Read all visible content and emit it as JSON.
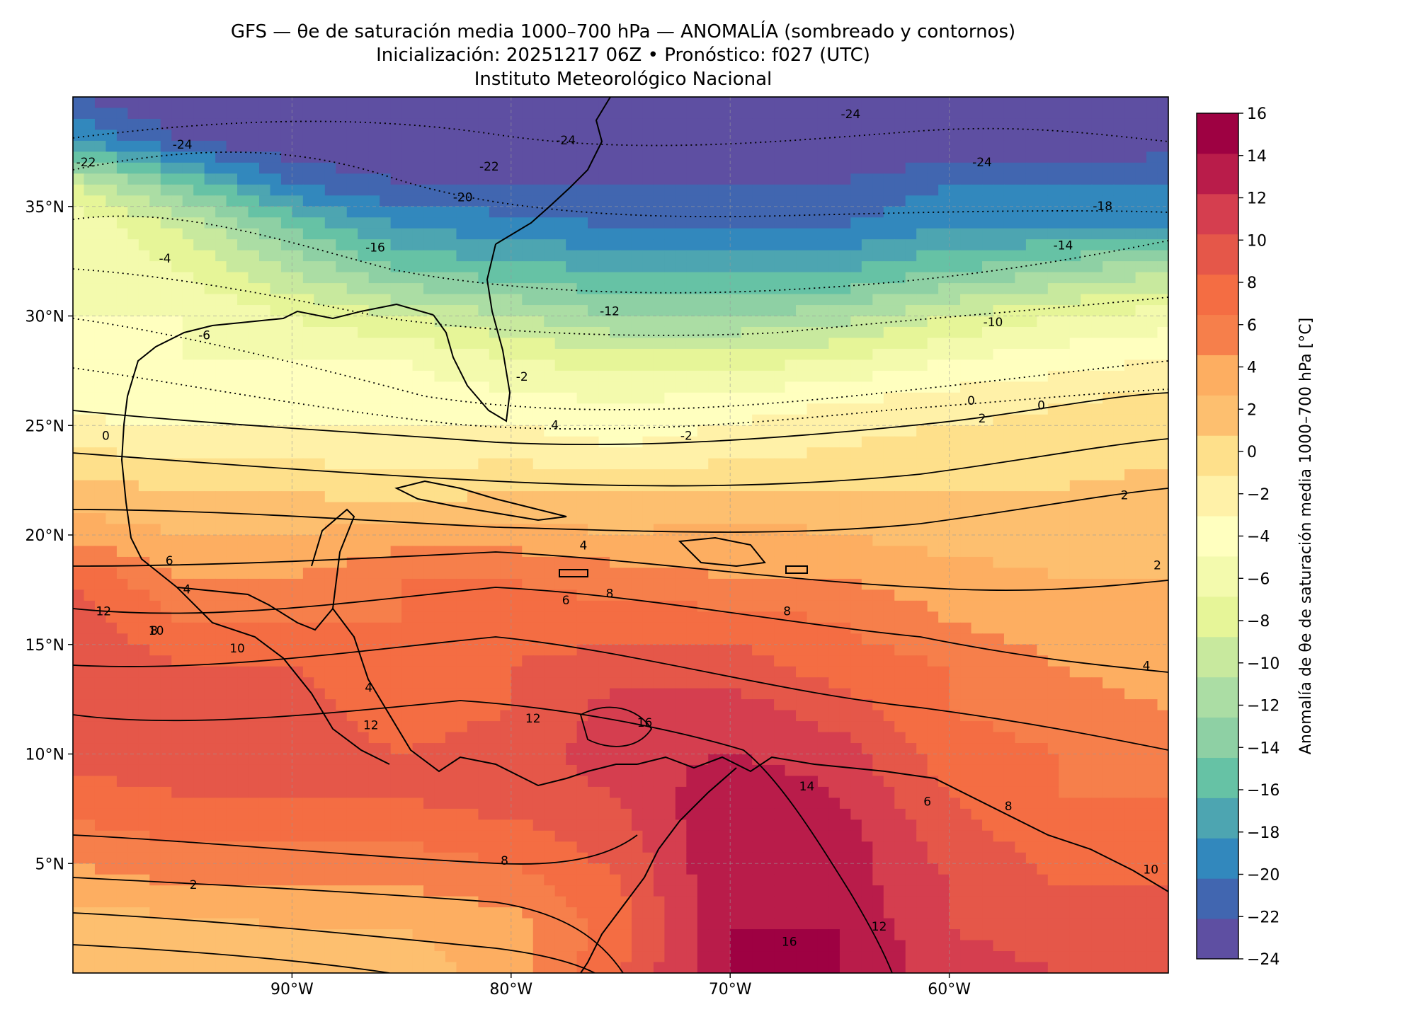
{
  "title": {
    "line1": "GFS — θe de saturación media 1000–700 hPa — ANOMALÍA (sombreado y contornos)",
    "line2": "Inicialización: 20251217 06Z   •   Pronóstico: f027 (UTC)",
    "line3": "Instituto Meteorológico Nacional"
  },
  "map": {
    "lon_range": [
      -100,
      -50
    ],
    "lat_range": [
      0,
      40
    ],
    "lon_ticks": [
      "90°W",
      "80°W",
      "70°W",
      "60°W"
    ],
    "lat_ticks": [
      "35°N",
      "30°N",
      "25°N",
      "20°N",
      "15°N",
      "10°N",
      "5°N"
    ],
    "gridlines": true
  },
  "colorbar": {
    "label": "Anomalía de θe de saturación media 1000–700 hPa [°C]",
    "ticks": [
      "16",
      "14",
      "12",
      "10",
      "8",
      "6",
      "4",
      "2",
      "0",
      "−2",
      "−4",
      "−6",
      "−8",
      "−10",
      "−12",
      "−14",
      "−16",
      "−18",
      "−20",
      "−22",
      "−24"
    ],
    "levels": [
      -24,
      -22,
      -20,
      -18,
      -16,
      -14,
      -12,
      -10,
      -8,
      -6,
      -4,
      -2,
      0,
      2,
      4,
      6,
      8,
      10,
      12,
      14,
      16
    ],
    "colors": [
      "#5e4fa2",
      "#4166b0",
      "#3288bd",
      "#4da5b1",
      "#66c2a5",
      "#8ed0a4",
      "#abdda4",
      "#c8e99e",
      "#e6f598",
      "#f3faad",
      "#ffffbf",
      "#fff1a8",
      "#fee08b",
      "#fdbf6f",
      "#fdae61",
      "#f67f4b",
      "#f46d43",
      "#e55749",
      "#d53e4f",
      "#b91c4a",
      "#9e0142"
    ]
  },
  "contour_labels": [
    "-24",
    "-24",
    "-24",
    "-24",
    "-22",
    "-22",
    "-20",
    "-18",
    "-16",
    "-14",
    "-12",
    "-10",
    "-6",
    "-4",
    "-2",
    "-2",
    "0",
    "0",
    "0",
    "2",
    "2",
    "2",
    "2",
    "4",
    "4",
    "4",
    "4",
    "4",
    "6",
    "6",
    "6",
    "8",
    "8",
    "8",
    "8",
    "8",
    "10",
    "10",
    "10",
    "12",
    "12",
    "12",
    "12",
    "14",
    "16",
    "16"
  ],
  "chart_data": {
    "type": "heatmap",
    "title": "GFS — θe de saturación media 1000–700 hPa — ANOMALÍA (sombreado y contornos)",
    "xlabel": "",
    "ylabel": "",
    "xlim": [
      -100,
      -50
    ],
    "ylim": [
      0,
      40
    ],
    "x": [
      -100,
      -95,
      -90,
      -85,
      -80,
      -75,
      -70,
      -65,
      -60,
      -55,
      -50
    ],
    "y": [
      40,
      38,
      36,
      34,
      32,
      30,
      28,
      26,
      24,
      22,
      20,
      18,
      16,
      14,
      12,
      10,
      8,
      6,
      4,
      2,
      0
    ],
    "z": [
      [
        -22,
        -24,
        -24,
        -24,
        -24,
        -24,
        -24,
        -24,
        -24,
        -24,
        -24
      ],
      [
        -18,
        -22,
        -24,
        -24,
        -24,
        -24,
        -24,
        -24,
        -24,
        -24,
        -23
      ],
      [
        -8,
        -14,
        -20,
        -22,
        -22,
        -22,
        -22,
        -22,
        -20,
        -20,
        -20
      ],
      [
        -4,
        -8,
        -14,
        -18,
        -19,
        -20,
        -20,
        -20,
        -18,
        -18,
        -18
      ],
      [
        -4,
        -6,
        -10,
        -14,
        -15,
        -16,
        -16,
        -16,
        -14,
        -12,
        -10
      ],
      [
        -4,
        -4,
        -6,
        -8,
        -10,
        -12,
        -12,
        -11,
        -8,
        -6,
        -5
      ],
      [
        -4,
        -4,
        -4,
        -4,
        -6,
        -7,
        -7,
        -6,
        -4,
        -3,
        -2
      ],
      [
        -3,
        -3,
        -3,
        -3,
        -3,
        -4,
        -3,
        -2,
        -1,
        0,
        1
      ],
      [
        0,
        -1,
        -1,
        -1,
        -1,
        -2,
        -1,
        0,
        1,
        1,
        1
      ],
      [
        3,
        2,
        2,
        1,
        2,
        2,
        2,
        2,
        2,
        2,
        3
      ],
      [
        5,
        4,
        4,
        5,
        5,
        4,
        5,
        4,
        3,
        3,
        3
      ],
      [
        10,
        6,
        6,
        8,
        8,
        7,
        6,
        6,
        5,
        4,
        4
      ],
      [
        11,
        8,
        8,
        8,
        9,
        9,
        9,
        8,
        6,
        5,
        4
      ],
      [
        12,
        10,
        10,
        8,
        10,
        11,
        11,
        9,
        8,
        6,
        5
      ],
      [
        12,
        11,
        11,
        9,
        10,
        13,
        13,
        11,
        8,
        7,
        6
      ],
      [
        11,
        11,
        11,
        10,
        11,
        13,
        14,
        13,
        9,
        8,
        7
      ],
      [
        9,
        10,
        10,
        10,
        11,
        12,
        16,
        14,
        10,
        8,
        8
      ],
      [
        7,
        8,
        8,
        8,
        9,
        11,
        16,
        15,
        11,
        9,
        9
      ],
      [
        5,
        6,
        6,
        6,
        7,
        10,
        16,
        15,
        12,
        10,
        10
      ],
      [
        3,
        3,
        4,
        4,
        5,
        9,
        16,
        16,
        12,
        11,
        11
      ],
      [
        2,
        2,
        3,
        3,
        5,
        10,
        16,
        16,
        13,
        12,
        12
      ]
    ],
    "units": "°C"
  }
}
